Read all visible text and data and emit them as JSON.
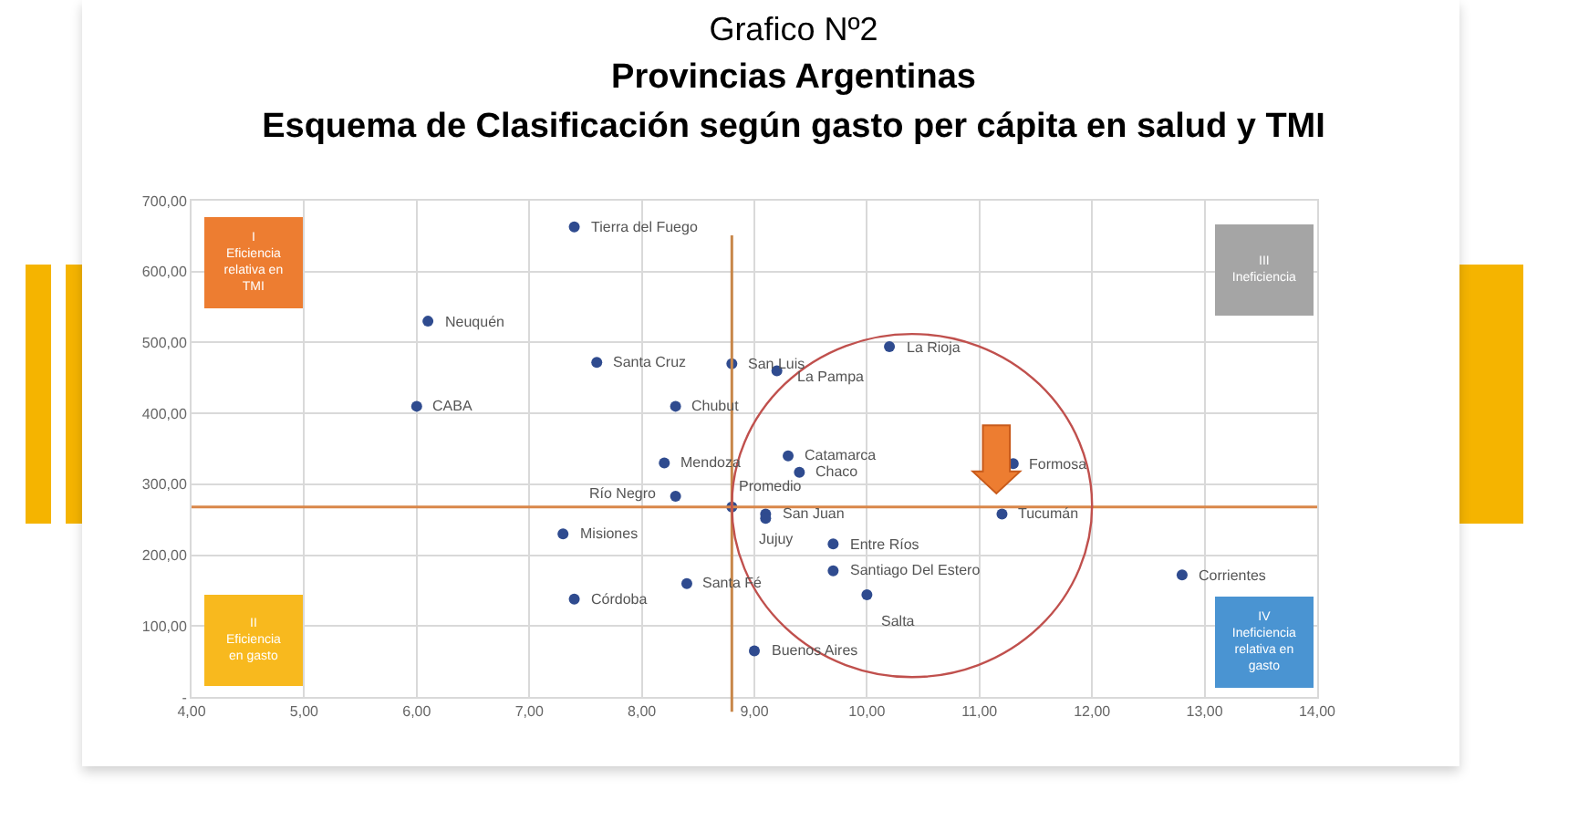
{
  "chart_data": {
    "type": "scatter",
    "title": "Grafico Nº2",
    "subtitle": "Provincias Argentinas\nEsquema de Clasificación según gasto per cápita en salud y TMI",
    "series": [
      {
        "color": "#2f4b8f",
        "x": [
          7.4,
          6.1,
          7.6,
          6.0,
          8.3,
          8.2,
          8.3,
          7.3,
          7.4,
          8.4,
          8.8,
          9.2,
          10.2,
          9.3,
          9.4,
          8.8,
          9.1,
          9.1,
          9.7,
          9.7,
          10.0,
          9.0,
          11.3,
          11.2,
          12.8
        ],
        "values": [
          663,
          530,
          472,
          410,
          410,
          330,
          283,
          230,
          138,
          160,
          470,
          460,
          494,
          340,
          317,
          268,
          258,
          252,
          216,
          178,
          144,
          65,
          329,
          258,
          172
        ]
      }
    ],
    "annotations": [
      {
        "text": "Tierra del Fuego",
        "x": 7.4,
        "y": 663
      },
      {
        "text": "Neuquén",
        "x": 6.1,
        "y": 530
      },
      {
        "text": "Santa Cruz",
        "x": 7.6,
        "y": 472
      },
      {
        "text": "CABA",
        "x": 6.0,
        "y": 410
      },
      {
        "text": "Chubut",
        "x": 8.3,
        "y": 410
      },
      {
        "text": "Mendoza",
        "x": 8.2,
        "y": 330
      },
      {
        "text": "Río Negro",
        "x": 8.3,
        "y": 283
      },
      {
        "text": "Misiones",
        "x": 7.3,
        "y": 230
      },
      {
        "text": "Córdoba",
        "x": 7.4,
        "y": 138
      },
      {
        "text": "Santa Fé",
        "x": 8.4,
        "y": 160
      },
      {
        "text": "San Luis",
        "x": 8.8,
        "y": 470
      },
      {
        "text": "La Pampa",
        "x": 9.2,
        "y": 460
      },
      {
        "text": "La Rioja",
        "x": 10.2,
        "y": 494
      },
      {
        "text": "Catamarca",
        "x": 9.3,
        "y": 340
      },
      {
        "text": "Chaco",
        "x": 9.4,
        "y": 317
      },
      {
        "text": "Promedio",
        "x": 8.8,
        "y": 268
      },
      {
        "text": "San Juan",
        "x": 9.1,
        "y": 258
      },
      {
        "text": "Jujuy",
        "x": 9.1,
        "y": 252
      },
      {
        "text": "Entre Ríos",
        "x": 9.7,
        "y": 216
      },
      {
        "text": "Santiago Del Estero",
        "x": 9.7,
        "y": 178
      },
      {
        "text": "Salta",
        "x": 10.0,
        "y": 144
      },
      {
        "text": "Buenos Aires",
        "x": 9.0,
        "y": 65
      },
      {
        "text": "Formosa",
        "x": 11.3,
        "y": 329
      },
      {
        "text": "Tucumán",
        "x": 11.2,
        "y": 258
      },
      {
        "text": "Corrientes",
        "x": 12.8,
        "y": 172
      },
      "I\nEficiencia\nrelativa en\nTMI",
      "II\nEficiencia\nen gasto",
      "III\nIneficiencia",
      "IV\nIneficiencia\nrelativa en\ngasto"
    ],
    "xlim": [
      4,
      14
    ],
    "xticks": [
      {
        "value": 4,
        "label": "4,00"
      },
      {
        "value": 5,
        "label": "5,00"
      },
      {
        "value": 6,
        "label": "6,00"
      },
      {
        "value": 7,
        "label": "7,00"
      },
      {
        "value": 8,
        "label": "8,00"
      },
      {
        "value": 9,
        "label": "9,00"
      },
      {
        "value": 10,
        "label": "10,00"
      },
      {
        "value": 11,
        "label": "11,00"
      },
      {
        "value": 12,
        "label": "12,00"
      },
      {
        "value": 13,
        "label": "13,00"
      },
      {
        "value": 14,
        "label": "14,00"
      }
    ],
    "ylim": [
      0,
      700
    ],
    "yticks": [
      {
        "value": 0,
        "label": "-"
      },
      {
        "value": 100,
        "label": "100,00"
      },
      {
        "value": 200,
        "label": "200,00"
      },
      {
        "value": 300,
        "label": "300,00"
      },
      {
        "value": 400,
        "label": "400,00"
      },
      {
        "value": 500,
        "label": "500,00"
      },
      {
        "value": 600,
        "label": "600,00"
      },
      {
        "value": 700,
        "label": "700,00"
      }
    ],
    "ref_lines": [
      {
        "axis": "x",
        "value": 8.8,
        "color": "#c8874a"
      },
      {
        "axis": "y",
        "value": 268,
        "color": "#d9874a"
      }
    ],
    "grid": true,
    "legend": false,
    "marker": "circle"
  }
}
